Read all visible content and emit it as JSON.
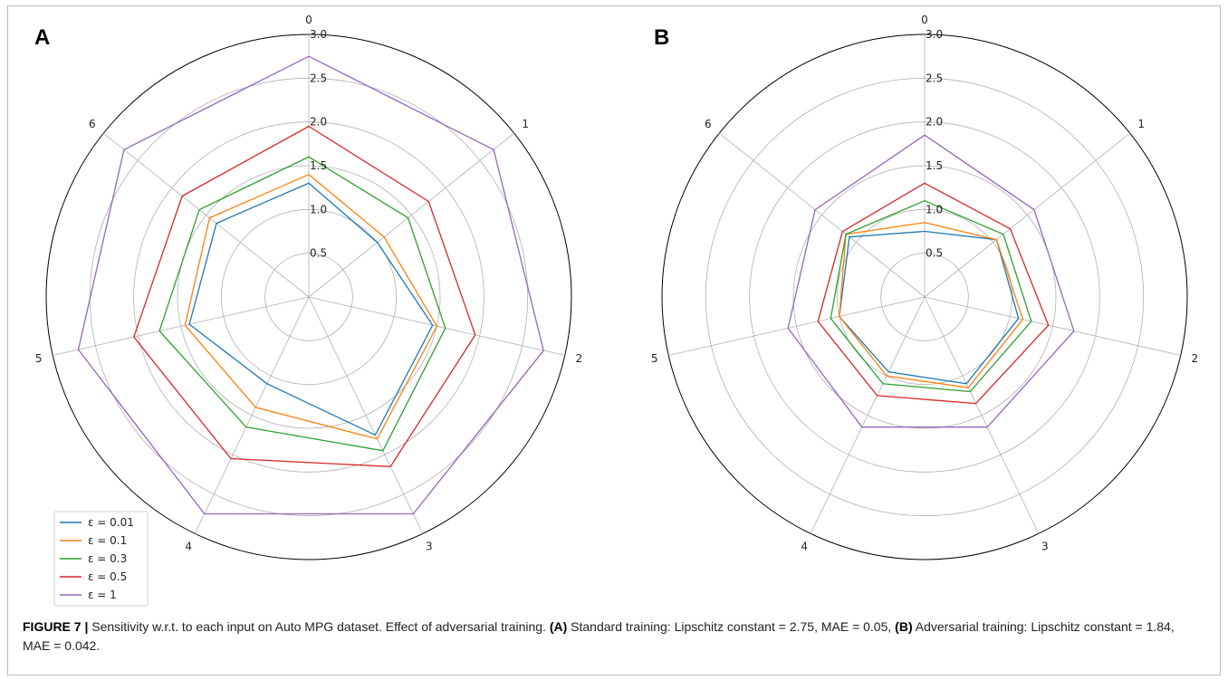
{
  "chart_data": [
    {
      "type": "radar",
      "panel_label": "A",
      "categories": [
        "0",
        "1",
        "2",
        "3",
        "4",
        "5",
        "6"
      ],
      "radial_ticks": [
        "0.5",
        "1.0",
        "1.5",
        "2.0",
        "2.5",
        "3.0"
      ],
      "rlim": [
        0,
        3.0
      ],
      "grid": true,
      "legend_position": "lower-left",
      "series": [
        {
          "name": "ε = 0.01",
          "color": "#1f77b4",
          "values": [
            1.3,
            1.0,
            1.45,
            1.75,
            1.1,
            1.4,
            1.35
          ]
        },
        {
          "name": "ε = 0.1",
          "color": "#ff7f0e",
          "values": [
            1.4,
            1.1,
            1.5,
            1.8,
            1.4,
            1.45,
            1.45
          ]
        },
        {
          "name": "ε = 0.3",
          "color": "#2ca02c",
          "values": [
            1.6,
            1.45,
            1.6,
            1.95,
            1.65,
            1.75,
            1.6
          ]
        },
        {
          "name": "ε = 0.5",
          "color": "#d62728",
          "values": [
            1.95,
            1.75,
            1.95,
            2.15,
            2.05,
            2.05,
            1.85
          ]
        },
        {
          "name": "ε = 1",
          "color": "#9467bd",
          "values": [
            2.75,
            2.7,
            2.75,
            2.75,
            2.75,
            2.7,
            2.7
          ]
        }
      ]
    },
    {
      "type": "radar",
      "panel_label": "B",
      "categories": [
        "0",
        "1",
        "2",
        "3",
        "4",
        "5",
        "6"
      ],
      "radial_ticks": [
        "0.5",
        "1.0",
        "1.5",
        "2.0",
        "2.5",
        "3.0"
      ],
      "rlim": [
        0,
        3.0
      ],
      "grid": true,
      "series": [
        {
          "name": "ε = 0.01",
          "color": "#1f77b4",
          "values": [
            0.75,
            1.05,
            1.1,
            1.1,
            0.95,
            1.0,
            1.1
          ]
        },
        {
          "name": "ε = 0.1",
          "color": "#ff7f0e",
          "values": [
            0.85,
            1.05,
            1.15,
            1.15,
            1.0,
            1.0,
            1.15
          ]
        },
        {
          "name": "ε = 0.3",
          "color": "#2ca02c",
          "values": [
            1.1,
            1.15,
            1.25,
            1.2,
            1.1,
            1.1,
            1.15
          ]
        },
        {
          "name": "ε = 0.5",
          "color": "#d62728",
          "values": [
            1.3,
            1.25,
            1.45,
            1.35,
            1.25,
            1.25,
            1.2
          ]
        },
        {
          "name": "ε = 1",
          "color": "#9467bd",
          "values": [
            1.85,
            1.6,
            1.75,
            1.65,
            1.65,
            1.6,
            1.6
          ]
        }
      ]
    }
  ],
  "caption": {
    "figure_label": "FIGURE 7 |",
    "text_1": " Sensitivity w.r.t. to each input on Auto MPG dataset. Effect of adversarial training. ",
    "a_label": "(A)",
    "text_2": " Standard training: Lipschitz constant = 2.75, MAE = 0.05, ",
    "b_label": "(B)",
    "text_3": " Adversarial training: Lipschitz constant = 1.84, MAE = 0.042."
  }
}
